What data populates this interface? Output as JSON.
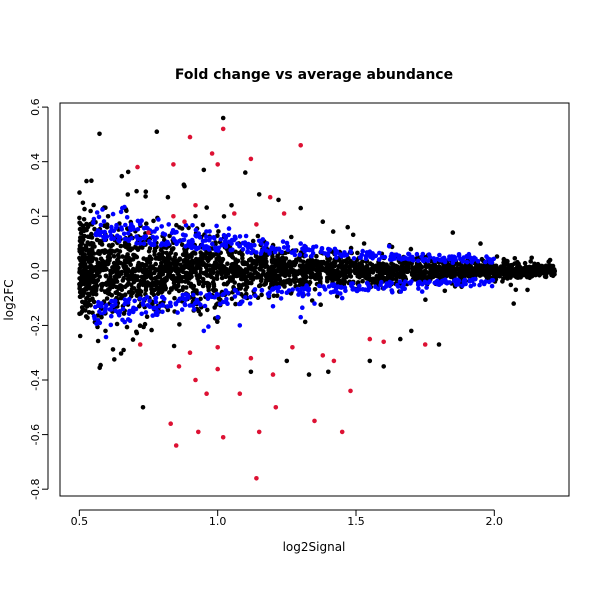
{
  "chart_data": {
    "type": "scatter",
    "title": "Fold change vs average abundance",
    "xlabel": "log2Signal",
    "ylabel": "log2FC",
    "xlim": [
      0.43,
      2.27
    ],
    "ylim": [
      -0.825,
      0.615
    ],
    "xticks": [
      "0.5",
      "1.0",
      "1.5",
      "2.0"
    ],
    "yticks": [
      "-0.8",
      "-0.6",
      "-0.4",
      "-0.2",
      "0.0",
      "0.2",
      "0.4",
      "0.6"
    ],
    "grid": false,
    "legend": "none",
    "series": [
      {
        "color": "#000000",
        "description": "non-significant genes (dense cloud, ~thousands of points)",
        "points": [
          [
            0.78,
            0.51
          ],
          [
            1.02,
            0.56
          ],
          [
            1.1,
            0.36
          ],
          [
            0.95,
            0.37
          ],
          [
            0.88,
            0.31
          ],
          [
            0.74,
            0.29
          ],
          [
            0.67,
            0.22
          ],
          [
            1.15,
            0.28
          ],
          [
            1.3,
            0.23
          ],
          [
            1.22,
            0.26
          ],
          [
            0.6,
            0.16
          ],
          [
            0.82,
            0.27
          ],
          [
            1.05,
            0.24
          ],
          [
            0.92,
            0.2
          ],
          [
            1.38,
            0.18
          ],
          [
            0.73,
            -0.5
          ],
          [
            0.66,
            -0.29
          ],
          [
            1.33,
            -0.38
          ],
          [
            1.55,
            -0.33
          ],
          [
            1.6,
            -0.35
          ],
          [
            1.4,
            -0.37
          ],
          [
            1.25,
            -0.33
          ],
          [
            1.12,
            -0.37
          ],
          [
            1.8,
            -0.27
          ],
          [
            2.07,
            -0.12
          ],
          [
            2.12,
            -0.07
          ],
          [
            2.2,
            0.02
          ],
          [
            1.85,
            0.14
          ],
          [
            1.95,
            0.1
          ],
          [
            1.7,
            -0.22
          ],
          [
            0.55,
            0.1
          ],
          [
            0.52,
            -0.12
          ],
          [
            0.58,
            -0.17
          ],
          [
            1.47,
            0.16
          ],
          [
            1.66,
            -0.25
          ]
        ]
      },
      {
        "color": "#0000ff",
        "description": "intermediate fold change",
        "points": [
          [
            1.15,
            0.11
          ],
          [
            1.3,
            0.1
          ],
          [
            1.4,
            0.08
          ],
          [
            1.55,
            0.07
          ],
          [
            1.7,
            0.05
          ],
          [
            0.9,
            0.09
          ],
          [
            1.05,
            0.1
          ],
          [
            1.62,
            0.09
          ],
          [
            1.85,
            0.03
          ],
          [
            1.25,
            -0.08
          ],
          [
            1.2,
            -0.13
          ],
          [
            1.35,
            -0.12
          ],
          [
            1.45,
            -0.1
          ],
          [
            1.0,
            -0.17
          ],
          [
            0.95,
            -0.22
          ],
          [
            0.7,
            -0.11
          ],
          [
            1.08,
            -0.2
          ],
          [
            1.55,
            -0.06
          ],
          [
            1.3,
            -0.17
          ],
          [
            0.8,
            -0.15
          ]
        ]
      },
      {
        "color": "#dd1133",
        "description": "significant genes",
        "points": [
          [
            0.71,
            0.38
          ],
          [
            0.84,
            0.39
          ],
          [
            0.9,
            0.49
          ],
          [
            1.02,
            0.52
          ],
          [
            1.3,
            0.46
          ],
          [
            1.0,
            0.39
          ],
          [
            0.98,
            0.43
          ],
          [
            1.12,
            0.41
          ],
          [
            0.75,
            0.14
          ],
          [
            0.84,
            0.2
          ],
          [
            0.92,
            0.24
          ],
          [
            1.06,
            0.21
          ],
          [
            1.14,
            0.17
          ],
          [
            1.24,
            0.21
          ],
          [
            0.88,
            0.18
          ],
          [
            1.19,
            0.27
          ],
          [
            0.72,
            -0.27
          ],
          [
            0.83,
            -0.56
          ],
          [
            0.85,
            -0.64
          ],
          [
            0.93,
            -0.59
          ],
          [
            0.96,
            -0.45
          ],
          [
            1.02,
            -0.61
          ],
          [
            1.08,
            -0.45
          ],
          [
            1.15,
            -0.59
          ],
          [
            1.21,
            -0.5
          ],
          [
            1.14,
            -0.76
          ],
          [
            1.35,
            -0.55
          ],
          [
            1.45,
            -0.59
          ],
          [
            1.48,
            -0.44
          ],
          [
            0.86,
            -0.35
          ],
          [
            0.92,
            -0.4
          ],
          [
            1.0,
            -0.36
          ],
          [
            0.9,
            -0.3
          ],
          [
            1.0,
            -0.28
          ],
          [
            1.12,
            -0.32
          ],
          [
            1.2,
            -0.38
          ],
          [
            1.27,
            -0.28
          ],
          [
            1.38,
            -0.31
          ],
          [
            1.42,
            -0.33
          ],
          [
            1.75,
            -0.27
          ],
          [
            1.6,
            -0.26
          ],
          [
            1.55,
            -0.25
          ]
        ]
      }
    ]
  }
}
